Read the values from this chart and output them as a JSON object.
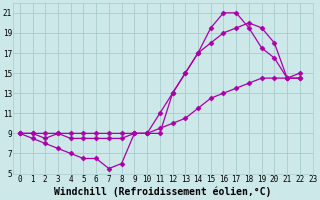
{
  "background_color": "#cce8e8",
  "grid_color": "#aacccc",
  "line_color": "#aa00aa",
  "marker": "D",
  "markersize": 2.5,
  "linewidth": 0.9,
  "xlim": [
    -0.5,
    23
  ],
  "ylim": [
    5,
    22
  ],
  "yticks": [
    5,
    7,
    9,
    11,
    13,
    15,
    17,
    19,
    21
  ],
  "xticks": [
    0,
    1,
    2,
    3,
    4,
    5,
    6,
    7,
    8,
    9,
    10,
    11,
    12,
    13,
    14,
    15,
    16,
    17,
    18,
    19,
    20,
    21,
    22,
    23
  ],
  "xlabel": "Windchill (Refroidissement éolien,°C)",
  "xlabel_fontsize": 7.0,
  "tick_fontsize": 5.5,
  "series": [
    [
      9.0,
      8.5,
      8.0,
      7.5,
      7.0,
      6.5,
      6.5,
      5.5,
      6.0,
      9.0,
      9.0,
      9.0,
      13.0,
      15.0,
      17.0,
      19.5,
      21.0,
      21.0,
      19.5,
      17.5,
      16.5,
      14.5,
      14.5
    ],
    [
      9.0,
      9.0,
      8.5,
      9.0,
      8.5,
      8.5,
      8.5,
      8.5,
      8.5,
      9.0,
      9.0,
      11.0,
      13.0,
      15.0,
      17.0,
      18.0,
      19.0,
      19.5,
      20.0,
      19.5,
      18.0,
      14.5,
      14.5
    ],
    [
      9.0,
      9.0,
      9.0,
      9.0,
      9.0,
      9.0,
      9.0,
      9.0,
      9.0,
      9.0,
      9.0,
      9.5,
      10.0,
      10.5,
      11.5,
      12.5,
      13.0,
      13.5,
      14.0,
      14.5,
      14.5,
      14.5,
      15.0
    ]
  ],
  "series_x": [
    [
      0,
      1,
      2,
      3,
      4,
      5,
      6,
      7,
      8,
      9,
      10,
      11,
      12,
      13,
      14,
      15,
      16,
      17,
      18,
      19,
      20,
      21,
      22
    ],
    [
      0,
      1,
      2,
      3,
      4,
      5,
      6,
      7,
      8,
      9,
      10,
      11,
      12,
      13,
      14,
      15,
      16,
      17,
      18,
      19,
      20,
      21,
      22
    ],
    [
      0,
      1,
      2,
      3,
      4,
      5,
      6,
      7,
      8,
      9,
      10,
      11,
      12,
      13,
      14,
      15,
      16,
      17,
      18,
      19,
      20,
      21,
      22
    ]
  ]
}
